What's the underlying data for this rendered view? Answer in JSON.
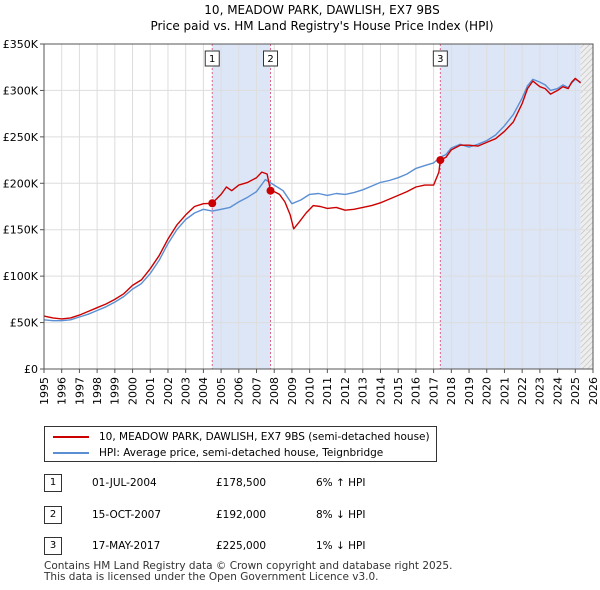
{
  "chart_data": {
    "type": "line",
    "title": "10, MEADOW PARK, DAWLISH, EX7 9BS",
    "subtitle": "Price paid vs. HM Land Registry's House Price Index (HPI)",
    "xlabel": "",
    "ylabel": "",
    "xlim": [
      1995,
      2026
    ],
    "ylim": [
      0,
      350000
    ],
    "y_ticks": [
      0,
      50000,
      100000,
      150000,
      200000,
      250000,
      300000,
      350000
    ],
    "y_tick_labels": [
      "£0",
      "£50K",
      "£100K",
      "£150K",
      "£200K",
      "£250K",
      "£300K",
      "£350K"
    ],
    "x_ticks": [
      1995,
      1996,
      1997,
      1998,
      1999,
      2000,
      2001,
      2002,
      2003,
      2004,
      2005,
      2006,
      2007,
      2008,
      2009,
      2010,
      2011,
      2012,
      2013,
      2014,
      2015,
      2016,
      2017,
      2018,
      2019,
      2020,
      2021,
      2022,
      2023,
      2024,
      2025,
      2026
    ],
    "x_tick_labels": [
      "1995",
      "1996",
      "1997",
      "1998",
      "1999",
      "2000",
      "2001",
      "2002",
      "2003",
      "2004",
      "2005",
      "2006",
      "2007",
      "2008",
      "2009",
      "2010",
      "2011",
      "2012",
      "2013",
      "2014",
      "2015",
      "2016",
      "2017",
      "2018",
      "2019",
      "2020",
      "2021",
      "2022",
      "2023",
      "2024",
      "2025",
      "2026"
    ],
    "grid": true,
    "shaded_ranges": [
      [
        2004.5,
        2007.79
      ],
      [
        2017.38,
        2025.3
      ]
    ],
    "forecast_start": 2025.3,
    "series": [
      {
        "name": "10, MEADOW PARK, DAWLISH, EX7 9BS (semi-detached house)",
        "color": "#cc0000",
        "x": [
          1995.0,
          1995.5,
          1996.0,
          1996.5,
          1997.0,
          1997.5,
          1998.0,
          1998.5,
          1999.0,
          1999.5,
          2000.0,
          2000.5,
          2001.0,
          2001.5,
          2002.0,
          2002.5,
          2003.0,
          2003.5,
          2004.0,
          2004.5,
          2005.0,
          2005.3,
          2005.6,
          2006.0,
          2006.5,
          2007.0,
          2007.3,
          2007.6,
          2007.79,
          2008.0,
          2008.3,
          2008.6,
          2008.9,
          2009.1,
          2009.4,
          2009.8,
          2010.2,
          2010.6,
          2011.0,
          2011.5,
          2012.0,
          2012.5,
          2013.0,
          2013.5,
          2014.0,
          2014.5,
          2015.0,
          2015.5,
          2016.0,
          2016.5,
          2017.0,
          2017.3,
          2017.38,
          2017.7,
          2018.0,
          2018.5,
          2019.0,
          2019.5,
          2020.0,
          2020.5,
          2021.0,
          2021.5,
          2022.0,
          2022.3,
          2022.6,
          2023.0,
          2023.3,
          2023.6,
          2024.0,
          2024.3,
          2024.6,
          2024.8,
          2025.0,
          2025.3
        ],
        "values": [
          57000,
          55000,
          54000,
          55000,
          58000,
          62000,
          66000,
          70000,
          75000,
          81000,
          90000,
          96000,
          108000,
          122000,
          140000,
          155000,
          166000,
          175000,
          178000,
          178500,
          188000,
          196000,
          192000,
          198000,
          201000,
          206000,
          212000,
          210000,
          192000,
          191000,
          188000,
          180000,
          166000,
          151000,
          158000,
          168000,
          176000,
          175000,
          173000,
          174000,
          171000,
          172000,
          174000,
          176000,
          179000,
          183000,
          187000,
          191000,
          196000,
          198000,
          198000,
          212000,
          225000,
          228000,
          236000,
          241000,
          241000,
          240000,
          244000,
          248000,
          256000,
          266000,
          286000,
          302000,
          310000,
          304000,
          302000,
          296000,
          300000,
          304000,
          302000,
          309000,
          313000,
          308000
        ]
      },
      {
        "name": "HPI: Average price, semi-detached house, Teignbridge",
        "color": "#5b8fd4",
        "x": [
          1995.0,
          1995.5,
          1996.0,
          1996.5,
          1997.0,
          1997.5,
          1998.0,
          1998.5,
          1999.0,
          1999.5,
          2000.0,
          2000.5,
          2001.0,
          2001.5,
          2002.0,
          2002.5,
          2003.0,
          2003.5,
          2004.0,
          2004.5,
          2005.0,
          2005.5,
          2006.0,
          2006.5,
          2007.0,
          2007.5,
          2008.0,
          2008.5,
          2009.0,
          2009.5,
          2010.0,
          2010.5,
          2011.0,
          2011.5,
          2012.0,
          2012.5,
          2013.0,
          2013.5,
          2014.0,
          2014.5,
          2015.0,
          2015.5,
          2016.0,
          2016.5,
          2017.0,
          2017.38,
          2017.7,
          2018.0,
          2018.5,
          2019.0,
          2019.5,
          2020.0,
          2020.5,
          2021.0,
          2021.5,
          2022.0,
          2022.3,
          2022.6,
          2023.0,
          2023.3,
          2023.6,
          2024.0,
          2024.3,
          2024.6,
          2024.8,
          2025.0,
          2025.3
        ],
        "values": [
          53000,
          52000,
          52000,
          53000,
          56000,
          59000,
          63000,
          67000,
          72000,
          78000,
          86000,
          92000,
          103000,
          117000,
          135000,
          150000,
          161000,
          168000,
          172000,
          170000,
          172000,
          174000,
          180000,
          185000,
          191000,
          204000,
          198000,
          192000,
          178000,
          182000,
          188000,
          189000,
          187000,
          189000,
          188000,
          190000,
          193000,
          197000,
          201000,
          203000,
          206000,
          210000,
          216000,
          219000,
          222000,
          228000,
          231000,
          238000,
          242000,
          239000,
          242000,
          246000,
          252000,
          262000,
          274000,
          292000,
          305000,
          312000,
          309000,
          306000,
          300000,
          302000,
          306000,
          303000,
          308000,
          312000,
          309000
        ]
      }
    ],
    "transactions": [
      {
        "label": "1",
        "x": 2004.5,
        "price": 178500,
        "date": "01-JUL-2004",
        "price_text": "£178,500",
        "hpi_text": "6% ↑ HPI"
      },
      {
        "label": "2",
        "x": 2007.79,
        "price": 192000,
        "date": "15-OCT-2007",
        "price_text": "£192,000",
        "hpi_text": "8% ↓ HPI"
      },
      {
        "label": "3",
        "x": 2017.38,
        "price": 225000,
        "date": "17-MAY-2017",
        "price_text": "£225,000",
        "hpi_text": "1% ↓ HPI"
      }
    ]
  },
  "footer": {
    "line1": "Contains HM Land Registry data © Crown copyright and database right 2025.",
    "line2": "This data is licensed under the Open Government Licence v3.0."
  },
  "colors": {
    "price_line": "#cc0000",
    "hpi_line": "#5b8fd4",
    "shade": "#dde6f7",
    "grid": "#dddddd",
    "marker_line": "#dd6688"
  }
}
